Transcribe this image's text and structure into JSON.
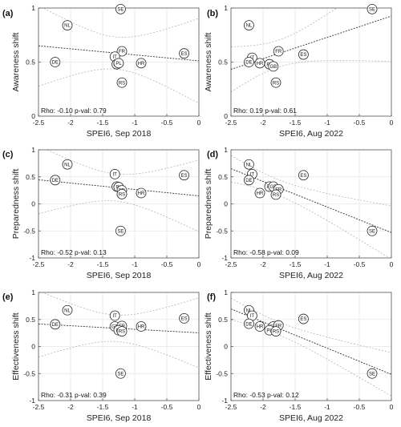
{
  "chart_data": [
    {
      "type": "scatter",
      "panel": "(a)",
      "xlabel": "SPEI6, Sep 2018",
      "ylabel": "Awareness shift",
      "xlim": [
        -2.5,
        0
      ],
      "ylim": [
        0,
        1
      ],
      "xticks": [
        "-2.5",
        "-2",
        "-1.5",
        "-1",
        "-0.5",
        "0"
      ],
      "yticks": [
        "0",
        "0.5",
        "1"
      ],
      "stats": "Rho: -0.10 p-val: 0.79",
      "points": [
        {
          "label": "NL",
          "x": -2.05,
          "y": 0.84
        },
        {
          "label": "SE",
          "x": -1.22,
          "y": 0.99
        },
        {
          "label": "FR",
          "x": -1.2,
          "y": 0.6
        },
        {
          "label": "ES",
          "x": -0.23,
          "y": 0.58
        },
        {
          "label": "IT",
          "x": -1.31,
          "y": 0.55
        },
        {
          "label": "DE",
          "x": -2.24,
          "y": 0.5
        },
        {
          "label": "GB",
          "x": -1.28,
          "y": 0.48
        },
        {
          "label": "PL",
          "x": -1.25,
          "y": 0.49
        },
        {
          "label": "HR",
          "x": -0.9,
          "y": 0.49
        },
        {
          "label": "RS",
          "x": -1.2,
          "y": 0.31
        }
      ]
    },
    {
      "type": "scatter",
      "panel": "(b)",
      "xlabel": "SPEI6, Aug 2022",
      "ylabel": "Awareness shift",
      "xlim": [
        -2.5,
        0
      ],
      "ylim": [
        0,
        1
      ],
      "xticks": [
        "-2.5",
        "-2",
        "-1.5",
        "-1",
        "-0.5",
        "0"
      ],
      "yticks": [
        "0",
        "0.5",
        "1"
      ],
      "stats": "Rho: 0.19 p-val: 0.61",
      "points": [
        {
          "label": "NL",
          "x": -2.22,
          "y": 0.84
        },
        {
          "label": "SE",
          "x": -0.3,
          "y": 0.99
        },
        {
          "label": "FR",
          "x": -1.76,
          "y": 0.6
        },
        {
          "label": "ES",
          "x": -1.37,
          "y": 0.57
        },
        {
          "label": "IT",
          "x": -2.17,
          "y": 0.54
        },
        {
          "label": "DE",
          "x": -2.22,
          "y": 0.5
        },
        {
          "label": "HR",
          "x": -2.05,
          "y": 0.49
        },
        {
          "label": "PL",
          "x": -1.9,
          "y": 0.48
        },
        {
          "label": "GB",
          "x": -1.84,
          "y": 0.46
        },
        {
          "label": "RS",
          "x": -1.8,
          "y": 0.31
        }
      ]
    },
    {
      "type": "scatter",
      "panel": "(c)",
      "xlabel": "SPEI6, Sep 2018",
      "ylabel": "Preparedness shift",
      "xlim": [
        -2.5,
        0
      ],
      "ylim": [
        -1,
        1
      ],
      "xticks": [
        "-2.5",
        "-2",
        "-1.5",
        "-1",
        "-0.5",
        "0"
      ],
      "yticks": [
        "-1",
        "-0.5",
        "0",
        "0.5",
        "1"
      ],
      "stats": "Rho: -0.52 p-val: 0.13",
      "points": [
        {
          "label": "NL",
          "x": -2.05,
          "y": 0.73
        },
        {
          "label": "IT",
          "x": -1.31,
          "y": 0.55
        },
        {
          "label": "ES",
          "x": -0.23,
          "y": 0.53
        },
        {
          "label": "DE",
          "x": -2.24,
          "y": 0.44
        },
        {
          "label": "GB",
          "x": -1.28,
          "y": 0.32
        },
        {
          "label": "PL",
          "x": -1.25,
          "y": 0.31
        },
        {
          "label": "FR",
          "x": -1.2,
          "y": 0.25
        },
        {
          "label": "HR",
          "x": -0.9,
          "y": 0.2
        },
        {
          "label": "RS",
          "x": -1.2,
          "y": 0.18
        },
        {
          "label": "SE",
          "x": -1.22,
          "y": -0.5
        }
      ]
    },
    {
      "type": "scatter",
      "panel": "(d)",
      "xlabel": "SPEI6, Aug 2022",
      "ylabel": "Preparedness shift",
      "xlim": [
        -2.5,
        0
      ],
      "ylim": [
        -1,
        1
      ],
      "xticks": [
        "-2.5",
        "-2",
        "-1.5",
        "-1",
        "-0.5",
        "0"
      ],
      "yticks": [
        "-1",
        "-0.5",
        "0",
        "0.5",
        "1"
      ],
      "stats": "Rho: -0.58 p-val: 0.09",
      "points": [
        {
          "label": "NL",
          "x": -2.22,
          "y": 0.73
        },
        {
          "label": "IT",
          "x": -2.17,
          "y": 0.55
        },
        {
          "label": "ES",
          "x": -1.37,
          "y": 0.53
        },
        {
          "label": "DE",
          "x": -2.22,
          "y": 0.44
        },
        {
          "label": "PL",
          "x": -1.9,
          "y": 0.32
        },
        {
          "label": "GB",
          "x": -1.84,
          "y": 0.32
        },
        {
          "label": "FR",
          "x": -1.76,
          "y": 0.27
        },
        {
          "label": "HR",
          "x": -2.05,
          "y": 0.2
        },
        {
          "label": "RS",
          "x": -1.8,
          "y": 0.17
        },
        {
          "label": "SE",
          "x": -0.3,
          "y": -0.5
        }
      ]
    },
    {
      "type": "scatter",
      "panel": "(e)",
      "xlabel": "SPEI6, Sep 2018",
      "ylabel": "Effectiveness shift",
      "xlim": [
        -2.5,
        0
      ],
      "ylim": [
        -1,
        1
      ],
      "xticks": [
        "-2.5",
        "-2",
        "-1.5",
        "-1",
        "-0.5",
        "0"
      ],
      "yticks": [
        "-1",
        "-0.5",
        "0",
        "0.5",
        "1"
      ],
      "stats": "Rho: -0.31 p-val: 0.39",
      "points": [
        {
          "label": "NL",
          "x": -2.05,
          "y": 0.67
        },
        {
          "label": "IT",
          "x": -1.31,
          "y": 0.57
        },
        {
          "label": "ES",
          "x": -0.23,
          "y": 0.52
        },
        {
          "label": "DE",
          "x": -2.24,
          "y": 0.41
        },
        {
          "label": "GB",
          "x": -1.31,
          "y": 0.37
        },
        {
          "label": "FR",
          "x": -1.2,
          "y": 0.38
        },
        {
          "label": "HR",
          "x": -0.9,
          "y": 0.37
        },
        {
          "label": "PL",
          "x": -1.25,
          "y": 0.3
        },
        {
          "label": "RS",
          "x": -1.2,
          "y": 0.28
        },
        {
          "label": "SE",
          "x": -1.22,
          "y": -0.5
        }
      ]
    },
    {
      "type": "scatter",
      "panel": "(f)",
      "xlabel": "SPEI6, Aug 2022",
      "ylabel": "Effectiveness shift",
      "xlim": [
        -2.5,
        0
      ],
      "ylim": [
        -1,
        1
      ],
      "xticks": [
        "-2.5",
        "-2",
        "-1.5",
        "-1",
        "-0.5",
        "0"
      ],
      "yticks": [
        "-1",
        "-0.5",
        "0",
        "0.5",
        "1"
      ],
      "stats": "Rho: -0.53 p-val: 0.12",
      "points": [
        {
          "label": "NL",
          "x": -2.22,
          "y": 0.67
        },
        {
          "label": "IT",
          "x": -2.17,
          "y": 0.57
        },
        {
          "label": "ES",
          "x": -1.37,
          "y": 0.51
        },
        {
          "label": "DE",
          "x": -2.22,
          "y": 0.42
        },
        {
          "label": "HR",
          "x": -2.05,
          "y": 0.37
        },
        {
          "label": "GB",
          "x": -1.84,
          "y": 0.37
        },
        {
          "label": "FR",
          "x": -1.76,
          "y": 0.39
        },
        {
          "label": "PL",
          "x": -1.9,
          "y": 0.3
        },
        {
          "label": "RS",
          "x": -1.8,
          "y": 0.28
        },
        {
          "label": "SE",
          "x": -0.3,
          "y": -0.5
        }
      ]
    }
  ]
}
